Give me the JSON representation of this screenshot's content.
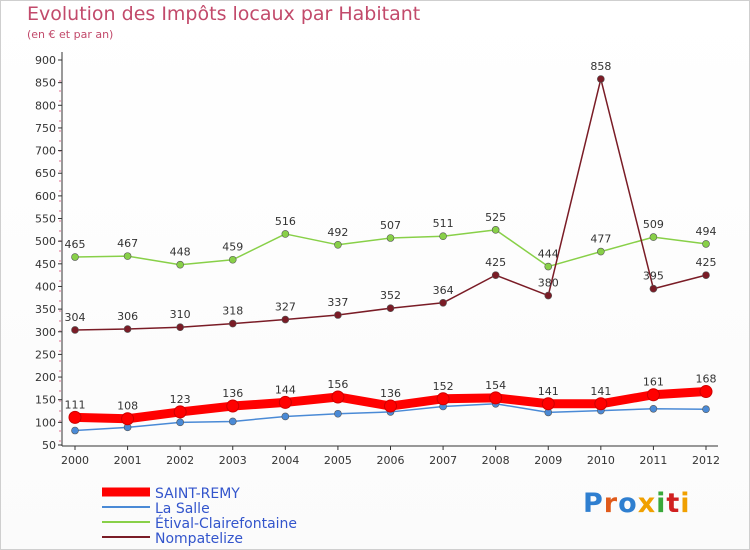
{
  "title": "Evolution des Impôts locaux par Habitant",
  "subtitle": "(en € et par an)",
  "logo": {
    "text": "Proxiti",
    "colors": [
      "#2f7fd0",
      "#e05a1a",
      "#2f7fd0",
      "#f0a000",
      "#3aa83a",
      "#d02020",
      "#f0a000"
    ]
  },
  "chart_data": {
    "type": "line",
    "title": "Evolution des Impôts locaux par Habitant",
    "subtitle": "(en € et par an)",
    "x": [
      "2000",
      "2001",
      "2002",
      "2003",
      "2004",
      "2005",
      "2006",
      "2007",
      "2008",
      "2009",
      "2010",
      "2011",
      "2012"
    ],
    "ylim": [
      50,
      900
    ],
    "yticks": [
      50,
      100,
      150,
      200,
      250,
      300,
      350,
      400,
      450,
      500,
      550,
      600,
      650,
      700,
      750,
      800,
      850,
      900
    ],
    "grid": false,
    "legend_position": "bottom-left",
    "series": [
      {
        "name": "SAINT-REMY",
        "color": "#ff0000",
        "labeled": true,
        "values": [
          111,
          108,
          123,
          136,
          144,
          156,
          136,
          152,
          154,
          141,
          141,
          161,
          168
        ]
      },
      {
        "name": "La Salle",
        "color": "#4a8ad6",
        "labeled": false,
        "values": [
          82,
          89,
          100,
          102,
          113,
          119,
          123,
          135,
          141,
          122,
          126,
          130,
          129
        ]
      },
      {
        "name": "Étival-Clairefontaine",
        "color": "#88d048",
        "labeled": true,
        "values": [
          465,
          467,
          448,
          459,
          516,
          492,
          507,
          511,
          525,
          444,
          477,
          509,
          494
        ]
      },
      {
        "name": "Nompatelize",
        "color": "#7a1c26",
        "labeled": true,
        "values": [
          304,
          306,
          310,
          318,
          327,
          337,
          352,
          364,
          425,
          380,
          858,
          395,
          425
        ]
      }
    ]
  }
}
